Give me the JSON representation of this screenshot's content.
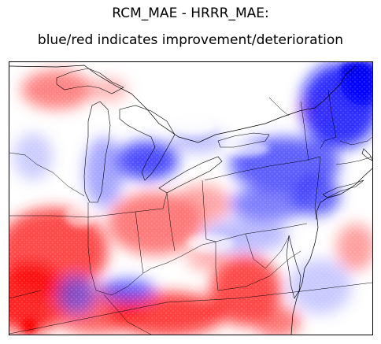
{
  "figure": {
    "title_line1": "RCM_MAE - HRRR_MAE:",
    "title_line2": "blue/red indicates improvement/deterioration"
  },
  "colors": {
    "improvement": "#0000ff",
    "deterioration": "#ff0000",
    "neutral": "#ffffff",
    "boundaries": "#000000"
  },
  "map": {
    "region": "Great Lakes / Mid-Atlantic / Northeast US",
    "projection": "lambert-conformal",
    "boundary_layers": [
      "coastlines",
      "lakes",
      "state-borders",
      "country-border"
    ]
  }
}
